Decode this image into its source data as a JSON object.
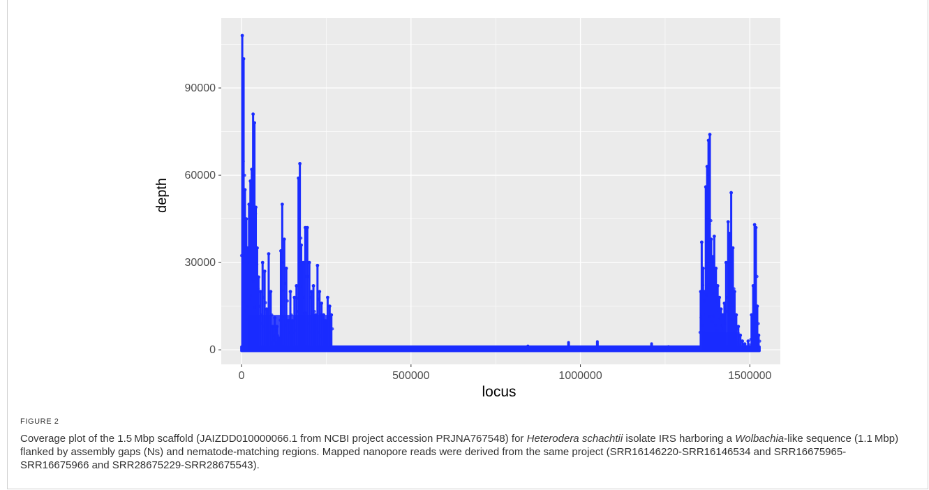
{
  "figure": {
    "label": "FIGURE 2",
    "caption": {
      "part1": "Coverage plot of the 1.5 Mbp scaffold (JAIZDD010000066.1 from NCBI project accession PRJNA767548) for ",
      "species": "Heterodera schachtii",
      "part2": " isolate IRS harboring a ",
      "genus": "Wolbachia",
      "part3": "-like sequence (1.1 Mbp) flanked by assembly gaps (Ns) and nematode-matching regions. Mapped nanopore reads were derived from the same project (SRR16146220-SRR16146534 and SRR16675965-SRR16675966 and SRR28675229-SRR28675543)."
    }
  },
  "colors": {
    "panel": "#ebebeb",
    "grid": "#ffffff",
    "points": "#1a2cff",
    "text": "#333333"
  },
  "chart_data": {
    "type": "scatter",
    "xlabel": "locus",
    "ylabel": "depth",
    "xlim": [
      -60000,
      1590000
    ],
    "ylim": [
      -5000,
      114000
    ],
    "xticks": [
      0,
      500000,
      1000000,
      1500000
    ],
    "xtick_labels": [
      "0",
      "500000",
      "1000000",
      "1500000"
    ],
    "yticks": [
      0,
      30000,
      60000,
      90000
    ],
    "ytick_labels": [
      "0",
      "30000",
      "60000",
      "90000"
    ],
    "grid": true,
    "legend": "none",
    "spikes": [
      [
        2000,
        108000
      ],
      [
        6000,
        100000
      ],
      [
        10000,
        55000
      ],
      [
        14000,
        45000
      ],
      [
        18000,
        35000
      ],
      [
        22000,
        50000
      ],
      [
        26000,
        58000
      ],
      [
        30000,
        62000
      ],
      [
        34000,
        81000
      ],
      [
        38000,
        78000
      ],
      [
        42000,
        49000
      ],
      [
        46000,
        35000
      ],
      [
        50000,
        25000
      ],
      [
        56000,
        20000
      ],
      [
        62000,
        30000
      ],
      [
        68000,
        27000
      ],
      [
        74000,
        14000
      ],
      [
        80000,
        33000
      ],
      [
        86000,
        20000
      ],
      [
        92000,
        8000
      ],
      [
        98000,
        11000
      ],
      [
        104000,
        8000
      ],
      [
        110000,
        4000
      ],
      [
        116000,
        34000
      ],
      [
        120000,
        50000
      ],
      [
        126000,
        38000
      ],
      [
        132000,
        28000
      ],
      [
        138000,
        10000
      ],
      [
        144000,
        20000
      ],
      [
        150000,
        10000
      ],
      [
        156000,
        18000
      ],
      [
        162000,
        22000
      ],
      [
        168000,
        59000
      ],
      [
        172000,
        64000
      ],
      [
        176000,
        36000
      ],
      [
        182000,
        30000
      ],
      [
        188000,
        42000
      ],
      [
        194000,
        42000
      ],
      [
        200000,
        30000
      ],
      [
        206000,
        20000
      ],
      [
        212000,
        22000
      ],
      [
        218000,
        12000
      ],
      [
        224000,
        29000
      ],
      [
        230000,
        20000
      ],
      [
        236000,
        16000
      ],
      [
        242000,
        12000
      ],
      [
        248000,
        10000
      ],
      [
        254000,
        18000
      ],
      [
        260000,
        15000
      ],
      [
        265000,
        12000
      ],
      [
        1355000,
        20000
      ],
      [
        1358000,
        37000
      ],
      [
        1362000,
        28000
      ],
      [
        1366000,
        20000
      ],
      [
        1370000,
        56000
      ],
      [
        1374000,
        63000
      ],
      [
        1378000,
        72000
      ],
      [
        1382000,
        74000
      ],
      [
        1386000,
        38000
      ],
      [
        1390000,
        32000
      ],
      [
        1395000,
        39000
      ],
      [
        1400000,
        28000
      ],
      [
        1405000,
        22000
      ],
      [
        1410000,
        18000
      ],
      [
        1415000,
        14000
      ],
      [
        1420000,
        12000
      ],
      [
        1425000,
        16000
      ],
      [
        1430000,
        30000
      ],
      [
        1436000,
        44000
      ],
      [
        1440000,
        40000
      ],
      [
        1445000,
        54000
      ],
      [
        1450000,
        35000
      ],
      [
        1455000,
        20000
      ],
      [
        1460000,
        12000
      ],
      [
        1466000,
        8000
      ],
      [
        1472000,
        5000
      ],
      [
        1478000,
        3000
      ],
      [
        1485000,
        2000
      ],
      [
        1495000,
        3000
      ],
      [
        1505000,
        12000
      ],
      [
        1510000,
        22000
      ],
      [
        1514000,
        43000
      ],
      [
        1518000,
        42000
      ],
      [
        1522000,
        15000
      ],
      [
        1526000,
        5000
      ]
    ],
    "baseline_bumps": [
      [
        340000,
        1200
      ],
      [
        470000,
        900
      ],
      [
        560000,
        1100
      ],
      [
        610000,
        1300
      ],
      [
        650000,
        900
      ],
      [
        690000,
        1200
      ],
      [
        750000,
        800
      ],
      [
        845000,
        1800
      ],
      [
        965000,
        3000
      ],
      [
        1050000,
        3300
      ],
      [
        1150000,
        900
      ],
      [
        1210000,
        2600
      ],
      [
        1260000,
        1600
      ],
      [
        1310000,
        1000
      ]
    ]
  }
}
